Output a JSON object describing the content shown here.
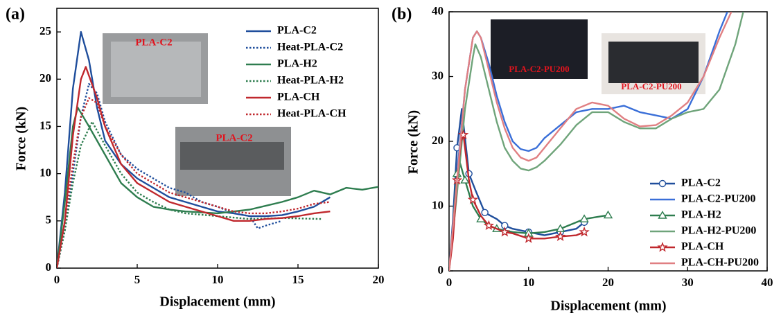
{
  "chart_data": [
    {
      "type": "line",
      "panel_label": "(a)",
      "x_label": "Displacement (mm)",
      "y_label": "Force (kN)",
      "xlim": [
        0,
        20
      ],
      "xticks": [
        0,
        5,
        10,
        15,
        20
      ],
      "ylim": [
        0,
        27.5
      ],
      "yticks": [
        0,
        5,
        10,
        15,
        20,
        25
      ],
      "legend": "upper right",
      "annotations": [
        "PLA-C2",
        "PLA-C2"
      ],
      "series": [
        {
          "name": "PLA-C2",
          "color": "#1f4e9c",
          "dashed": false,
          "x": [
            0,
            0.5,
            1,
            1.5,
            2,
            2.5,
            3,
            4,
            5,
            6,
            7,
            8,
            9,
            10,
            11,
            12,
            13,
            14,
            15,
            16,
            17
          ],
          "values": [
            0,
            8,
            19,
            25,
            22,
            17,
            13.5,
            11,
            9.5,
            8.5,
            7.5,
            7,
            6.5,
            6,
            5.8,
            5.5,
            5.5,
            5.6,
            6,
            6.5,
            7.5
          ]
        },
        {
          "name": "Heat-PLA-C2",
          "color": "#1f4e9c",
          "dashed": true,
          "x": [
            0,
            0.5,
            1,
            1.5,
            2,
            2.5,
            3,
            4,
            5,
            6,
            7,
            8,
            9,
            10,
            11,
            12,
            12.5,
            13,
            14
          ],
          "values": [
            0,
            4,
            10,
            16,
            19.5,
            18.5,
            15.5,
            12,
            10.5,
            9.5,
            8.5,
            8,
            7,
            6.5,
            5.8,
            5.5,
            4.2,
            4.5,
            5
          ]
        },
        {
          "name": "PLA-H2",
          "color": "#2e7d4f",
          "dashed": false,
          "x": [
            0,
            0.5,
            1,
            1.3,
            2,
            3,
            4,
            5,
            6,
            7,
            8,
            10,
            12,
            14,
            15,
            16,
            17,
            18,
            19,
            20
          ],
          "values": [
            0,
            7,
            15,
            17,
            15,
            12,
            9,
            7.5,
            6.5,
            6.2,
            6,
            5.8,
            6.2,
            7,
            7.5,
            8.2,
            7.8,
            8.5,
            8.3,
            8.6
          ]
        },
        {
          "name": "Heat-PLA-H2",
          "color": "#2e7d4f",
          "dashed": true,
          "x": [
            0,
            0.5,
            1,
            1.5,
            2.2,
            3,
            4,
            5,
            6,
            7,
            8,
            10,
            12,
            14,
            16.5
          ],
          "values": [
            0,
            4,
            9,
            13,
            15.5,
            13,
            10,
            8,
            7,
            6.2,
            5.8,
            5.5,
            5.2,
            5.3,
            5.2
          ]
        },
        {
          "name": "PLA-CH",
          "color": "#c0282d",
          "dashed": false,
          "x": [
            0,
            0.5,
            1,
            1.5,
            1.8,
            2.5,
            3,
            4,
            5,
            6,
            7,
            8,
            9,
            10,
            11,
            12,
            13,
            14,
            15,
            16,
            17
          ],
          "values": [
            0,
            5,
            14,
            20,
            21.3,
            18,
            15,
            11,
            9,
            8,
            7,
            6.5,
            6,
            5.5,
            5,
            5,
            5.2,
            5.3,
            5.5,
            5.8,
            6
          ]
        },
        {
          "name": "Heat-PLA-CH",
          "color": "#c0282d",
          "dashed": true,
          "x": [
            0,
            0.5,
            1,
            1.5,
            2,
            2.5,
            3,
            4,
            5,
            6,
            7,
            8,
            9,
            10,
            11,
            12,
            13,
            14,
            15,
            16,
            17
          ],
          "values": [
            0,
            5,
            11,
            16,
            18,
            17.5,
            15,
            12,
            10,
            9,
            8,
            7.5,
            7,
            6.5,
            6,
            5.8,
            5.8,
            6,
            6.3,
            6.8,
            7
          ]
        }
      ]
    },
    {
      "type": "line",
      "panel_label": "(b)",
      "x_label": "Displacement (mm)",
      "y_label": "Force (kN)",
      "xlim": [
        0,
        40
      ],
      "xticks": [
        0,
        10,
        20,
        30,
        40
      ],
      "ylim": [
        0,
        40
      ],
      "yticks": [
        0,
        10,
        20,
        30,
        40
      ],
      "legend": "lower right",
      "annotations": [
        "PLA-C2-PU200",
        "PLA-C2-PU200"
      ],
      "series": [
        {
          "name": "PLA-C2",
          "color": "#1f4e9c",
          "marker": "circle",
          "x": [
            0,
            0.5,
            1,
            1.6,
            2.5,
            3.3,
            4.5,
            6,
            7,
            8,
            10,
            12,
            14,
            16,
            17
          ],
          "values": [
            0,
            8,
            19,
            25,
            15,
            12.5,
            9,
            8,
            7,
            6.5,
            6,
            5.5,
            6,
            6.5,
            7.5
          ]
        },
        {
          "name": "PLA-C2-PU200",
          "color": "#3a6fd8",
          "x": [
            0,
            1,
            2,
            3,
            3.5,
            4,
            5,
            6,
            7,
            8,
            9,
            10,
            11,
            12,
            14,
            16,
            18,
            20,
            22,
            24,
            26,
            28,
            30,
            32,
            34,
            35
          ],
          "values": [
            0,
            15,
            28,
            36,
            37,
            36,
            32,
            27,
            23,
            20,
            18.8,
            18.5,
            19,
            20.5,
            22.5,
            24.5,
            25,
            25,
            25.5,
            24.5,
            24,
            23.5,
            25,
            30,
            37,
            40
          ]
        },
        {
          "name": "PLA-H2",
          "color": "#2e7d4f",
          "marker": "triangle",
          "x": [
            0,
            0.5,
            1,
            1.3,
            2,
            3,
            4,
            5,
            6,
            8,
            10,
            12,
            14,
            16,
            17,
            18,
            20
          ],
          "values": [
            0,
            7,
            15,
            17,
            14,
            10,
            8,
            7,
            6.5,
            6,
            5.8,
            6,
            6.5,
            7.5,
            8,
            8.2,
            8.6
          ]
        },
        {
          "name": "PLA-H2-PU200",
          "color": "#6fa47a",
          "x": [
            0,
            1,
            2,
            3,
            3.3,
            4,
            5,
            6,
            7,
            8,
            9,
            10,
            11,
            12,
            14,
            16,
            18,
            20,
            22,
            24,
            26,
            28,
            30,
            32,
            34,
            36,
            37
          ],
          "values": [
            0,
            12,
            25,
            33,
            35,
            33,
            28,
            23,
            19,
            17,
            15.8,
            15.5,
            16,
            17,
            19.5,
            22.5,
            24.5,
            24.5,
            23,
            22,
            22,
            23.5,
            24.5,
            25,
            28,
            35,
            40
          ]
        },
        {
          "name": "PLA-CH",
          "color": "#c0282d",
          "marker": "star",
          "x": [
            0,
            0.5,
            1,
            1.5,
            1.8,
            2.5,
            3,
            4,
            5,
            6,
            7,
            8,
            10,
            12,
            14,
            16,
            17
          ],
          "values": [
            0,
            5,
            14,
            20,
            21,
            14,
            11,
            8.5,
            7,
            6.5,
            6,
            5.8,
            5,
            5,
            5.3,
            5.5,
            6
          ]
        },
        {
          "name": "PLA-CH-PU200",
          "color": "#e07f82",
          "x": [
            0,
            1,
            2,
            3,
            3.5,
            4,
            5,
            6,
            7,
            8,
            9,
            10,
            11,
            12,
            14,
            16,
            18,
            20,
            22,
            24,
            26,
            28,
            30,
            32,
            34,
            35.5
          ],
          "values": [
            0,
            14,
            28,
            36,
            37,
            36,
            31,
            26,
            22,
            19,
            17.5,
            17,
            17.5,
            19,
            22,
            25,
            26,
            25.5,
            23.5,
            22.3,
            22.5,
            24,
            26,
            30,
            36,
            40
          ]
        }
      ]
    }
  ]
}
